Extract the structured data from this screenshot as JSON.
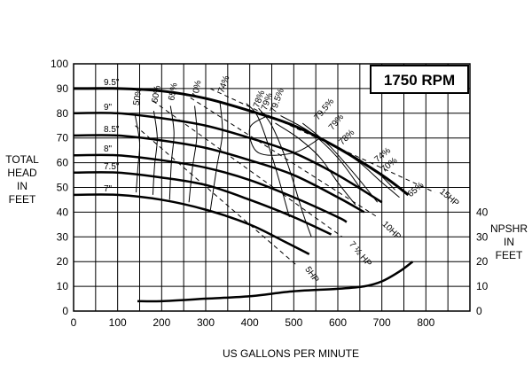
{
  "chart_data": {
    "type": "line",
    "title": "1750 RPM",
    "xlabel": "US GALLONS PER MINUTE",
    "ylabel": [
      "TOTAL",
      "HEAD",
      "IN",
      "FEET"
    ],
    "y2label": [
      "NPSHR",
      "IN",
      "FEET"
    ],
    "xlim": [
      0,
      900
    ],
    "ylim": [
      0,
      100
    ],
    "x_ticks": [
      "0",
      "100",
      "200",
      "300",
      "400",
      "500",
      "600",
      "700",
      "800"
    ],
    "y_ticks": [
      "0",
      "10",
      "20",
      "30",
      "40",
      "50",
      "60",
      "70",
      "80",
      "90",
      "100"
    ],
    "y2_ticks": [
      "0",
      "10",
      "20",
      "30",
      "40"
    ],
    "grid": true,
    "series": [
      {
        "name": "9.5\"",
        "x": [
          0,
          100,
          200,
          300,
          400,
          500,
          600,
          700,
          760
        ],
        "y": [
          90,
          90,
          89,
          86,
          81,
          75,
          66,
          55,
          47
        ]
      },
      {
        "name": "9\"",
        "x": [
          0,
          100,
          200,
          300,
          400,
          500,
          600,
          700
        ],
        "y": [
          80,
          80,
          78,
          75,
          70,
          64,
          55,
          44
        ]
      },
      {
        "name": "8.5\"",
        "x": [
          0,
          100,
          200,
          300,
          400,
          500,
          600,
          660
        ],
        "y": [
          71,
          71,
          69,
          66,
          61,
          55,
          46,
          40
        ]
      },
      {
        "name": "8\"",
        "x": [
          0,
          100,
          200,
          300,
          400,
          500,
          600,
          620
        ],
        "y": [
          63,
          63,
          61,
          58,
          53,
          46,
          38,
          36
        ]
      },
      {
        "name": "7.5\"",
        "x": [
          0,
          100,
          200,
          300,
          400,
          500,
          585
        ],
        "y": [
          56,
          56,
          54,
          51,
          45,
          38,
          31
        ]
      },
      {
        "name": "7\"",
        "x": [
          0,
          100,
          200,
          300,
          400,
          480,
          535
        ],
        "y": [
          47,
          47,
          45,
          41,
          35,
          28,
          23
        ]
      },
      {
        "name": "NPSHR",
        "x": [
          145,
          200,
          300,
          400,
          500,
          600,
          660,
          700,
          740,
          770
        ],
        "y": [
          4,
          4,
          5,
          6,
          8,
          9,
          10,
          12,
          16,
          20
        ]
      }
    ],
    "efficiency_labels": [
      "50%",
      "60%",
      "65%",
      "70%",
      "74%",
      "78%",
      "79%",
      "79.5%",
      "79.5%",
      "79%",
      "78%",
      "74%",
      "70%",
      "65%"
    ],
    "power_labels": [
      "5HP",
      "7 ½ HP",
      "10HP",
      "15HP"
    ]
  }
}
